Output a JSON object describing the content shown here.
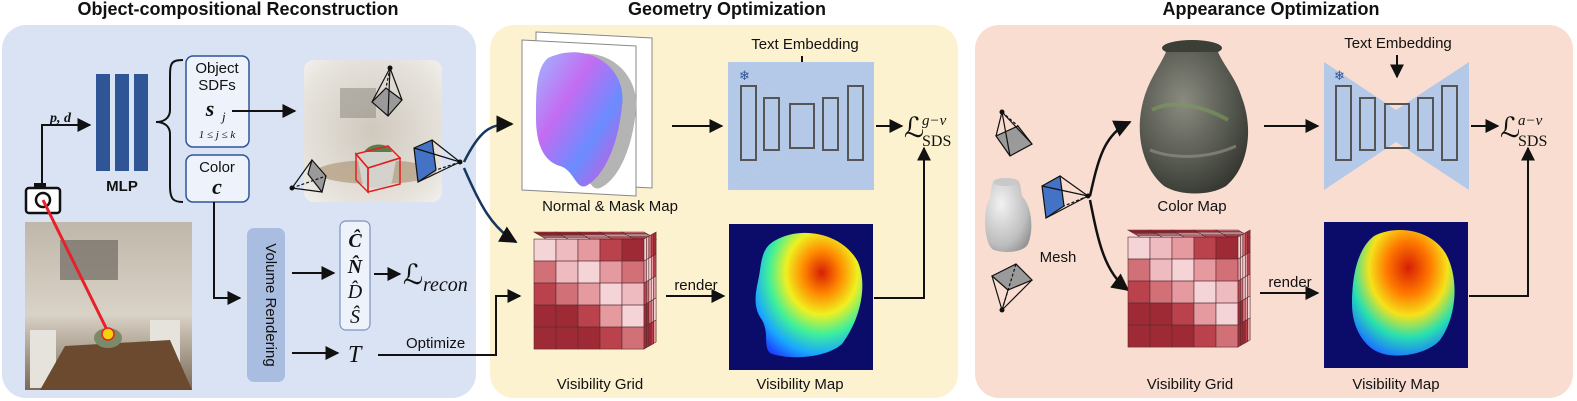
{
  "titles": {
    "reconstruction": "Object-compositional Reconstruction",
    "geometry": "Geometry Optimization",
    "appearance": "Appearance Optimization"
  },
  "reconstruction": {
    "ray_input": "p, d",
    "mlp_label": "MLP",
    "sdf_title_1": "Object",
    "sdf_title_2": "SDFs",
    "sdf_symbol": "s",
    "sdf_subscript": "j",
    "sdf_range": "1 ≤ j ≤ k",
    "color_title": "Color",
    "color_symbol": "c",
    "volume_rendering": "Volume Rendering",
    "outputs": [
      "Ĉ",
      "N̂",
      "D̂",
      "Ŝ"
    ],
    "loss_main": "ℒ",
    "loss_sub": "recon",
    "transmittance": "T",
    "optimize_label": "Optimize"
  },
  "geometry": {
    "text_embedding": "Text Embedding",
    "normal_mask_map": "Normal & Mask Map",
    "render_label": "render",
    "visibility_grid": "Visibility Grid",
    "visibility_map": "Visibility Map",
    "loss_main": "ℒ",
    "loss_sub": "SDS",
    "loss_sup": "g−v"
  },
  "appearance": {
    "text_embedding": "Text Embedding",
    "color_map": "Color Map",
    "mesh_label": "Mesh",
    "render_label": "render",
    "visibility_grid": "Visibility Grid",
    "visibility_map": "Visibility Map",
    "loss_main": "ℒ",
    "loss_sub": "SDS",
    "loss_sup": "a−v"
  },
  "colors": {
    "panel_reconstruction": "#d9e3f4",
    "panel_geometry": "#fcf2cf",
    "panel_appearance": "#f8ddd0",
    "unet_fill": "#b4c8e8",
    "mlp_bar": "#2f5597",
    "box_border": "#2f5597",
    "volume_box": "#a9bde0",
    "ray": "#e8202a",
    "camera_blue": "#4472c4"
  }
}
